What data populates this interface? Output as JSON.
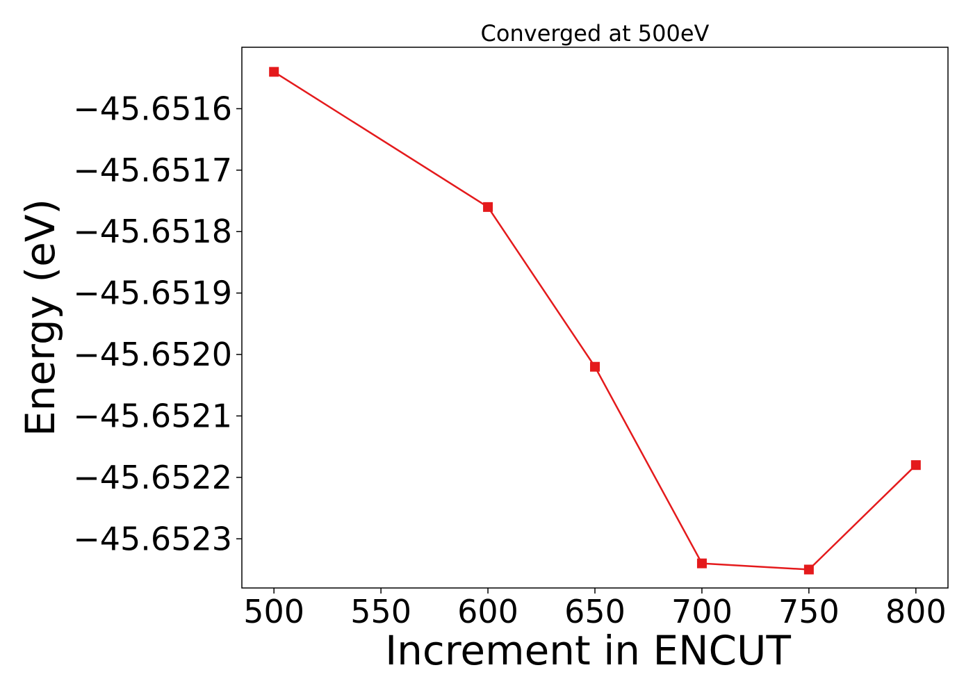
{
  "chart_data": {
    "type": "line",
    "title": "Converged at 500eV",
    "xlabel": "Increment in ENCUT",
    "ylabel": "Energy (eV)",
    "x": [
      500,
      600,
      650,
      700,
      750,
      800
    ],
    "series": [
      {
        "values": [
          -45.65154,
          -45.65176,
          -45.65202,
          -45.65234,
          -45.65235,
          -45.65218
        ],
        "color": "#e41a1c",
        "marker": "square"
      }
    ],
    "xlim": [
      485,
      815
    ],
    "ylim": [
      -45.65238,
      -45.6515
    ],
    "xticks": [
      500,
      550,
      600,
      650,
      700,
      750,
      800
    ],
    "xtick_labels": [
      "500",
      "550",
      "600",
      "650",
      "700",
      "750",
      "800"
    ],
    "yticks": [
      -45.6516,
      -45.6517,
      -45.6518,
      -45.6519,
      -45.652,
      -45.6521,
      -45.6522,
      -45.6523
    ],
    "ytick_labels": [
      "−45.6516",
      "−45.6517",
      "−45.6518",
      "−45.6519",
      "−45.6520",
      "−45.6521",
      "−45.6522",
      "−45.6523"
    ],
    "grid": false,
    "legend": "none"
  }
}
